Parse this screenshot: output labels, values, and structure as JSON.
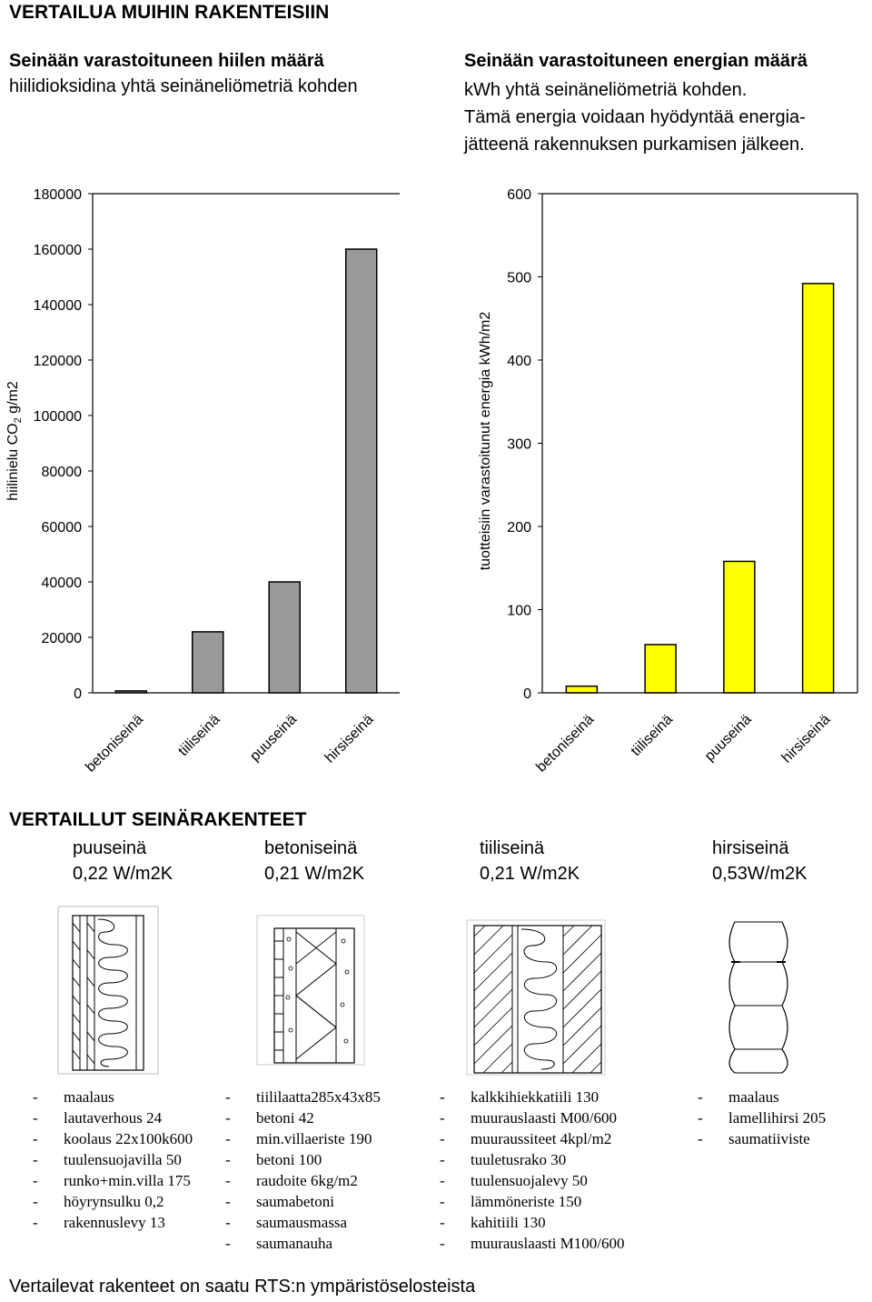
{
  "title": "VERTAILUA MUIHIN RAKENTEISIIN",
  "left_heading": {
    "bold": "Seinään varastoituneen hiilen määrä",
    "normal": "hiilidioksidina yhtä seinäneliömetriä kohden"
  },
  "right_heading": {
    "bold": "Seinään varastoituneen energian määrä",
    "normal": "kWh yhtä seinäneliömetriä kohden.\nTämä energia voidaan hyödyntää energia-\njätteenä rakennuksen purkamisen jälkeen."
  },
  "chart_data": [
    {
      "type": "bar",
      "categories": [
        "betoniseinä",
        "tiiliseinä",
        "puuseinä",
        "hirsiseinä"
      ],
      "values": [
        700,
        22000,
        40000,
        160000
      ],
      "ylabel_main": "hiilinielu CO",
      "ylabel_sub": "2",
      "ylabel_rest": " g/m2",
      "ylim": [
        0,
        180000
      ],
      "ticks": [
        0,
        20000,
        40000,
        60000,
        80000,
        100000,
        120000,
        140000,
        160000,
        180000
      ],
      "bar_color": "#999999",
      "grid": false
    },
    {
      "type": "bar",
      "categories": [
        "betoniseinä",
        "tiiliseinä",
        "puuseinä",
        "hirsiseinä"
      ],
      "values": [
        8,
        58,
        158,
        492
      ],
      "ylabel": "tuotteisiin varastoitunut energia kWh/m2",
      "ylim": [
        0,
        600
      ],
      "ticks": [
        0,
        100,
        200,
        300,
        400,
        500,
        600
      ],
      "bar_color": "#ffff00",
      "grid": false
    }
  ],
  "compared_title": "VERTAILLUT SEINÄRAKENTEET",
  "walls": [
    {
      "name": "puuseinä",
      "u": "0,22 W/m2K",
      "layers": [
        "maalaus",
        "lautaverhous 24",
        "koolaus 22x100k600",
        "tuulensuojavilla 50",
        "runko+min.villa 175",
        "höyrynsulku 0,2",
        "rakennuslevy 13"
      ]
    },
    {
      "name": "betoniseinä",
      "u": "0,21 W/m2K",
      "layers": [
        "tiililaatta285x43x85",
        "betoni 42",
        "min.villaeriste 190",
        "betoni 100",
        "raudoite 6kg/m2",
        "saumabetoni",
        "saumausmassa",
        "saumanauha"
      ]
    },
    {
      "name": "tiiliseinä",
      "u": "0,21 W/m2K",
      "layers": [
        "kalkkihiekkatiili 130",
        "muurauslaasti M00/600",
        "muuraussiteet 4kpl/m2",
        "tuuletusrako 30",
        "tuulensuojalevy 50",
        "lämmöneriste 150",
        "kahitiili 130",
        "muurauslaasti M100/600"
      ]
    },
    {
      "name": "hirsiseinä",
      "u": "0,53W/m2K",
      "layers": [
        "maalaus",
        "lamellihirsi 205",
        "saumatiiviste"
      ]
    }
  ],
  "dash": "-",
  "footer": "Vertailevat rakenteet on saatu RTS:n ympäristöselosteista"
}
